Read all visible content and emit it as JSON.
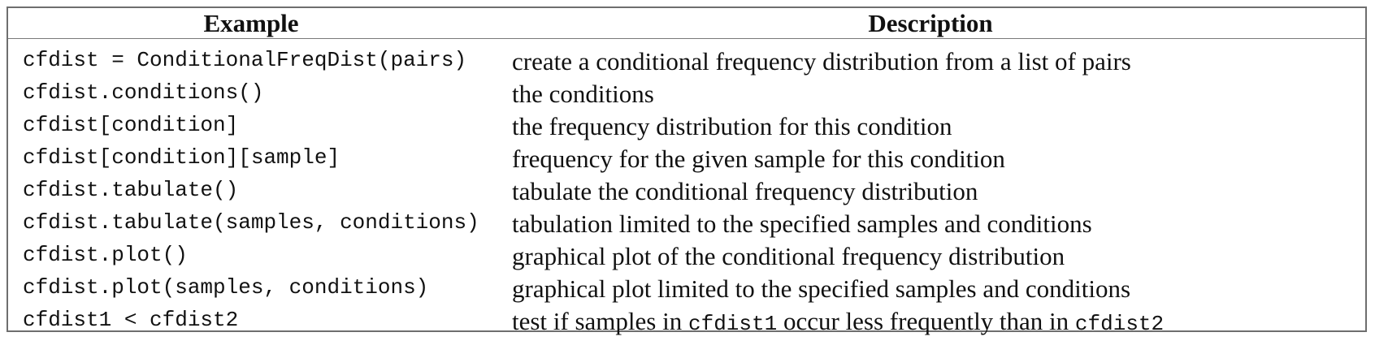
{
  "table": {
    "headers": {
      "example": "Example",
      "description": "Description"
    },
    "rows": [
      {
        "example": "cfdist = ConditionalFreqDist(pairs)",
        "description": "create a conditional frequency distribution from a list of pairs"
      },
      {
        "example": "cfdist.conditions()",
        "description": "the conditions"
      },
      {
        "example": "cfdist[condition]",
        "description": "the frequency distribution for this condition"
      },
      {
        "example": "cfdist[condition][sample]",
        "description": "frequency for the given sample for this condition"
      },
      {
        "example": "cfdist.tabulate()",
        "description": "tabulate the conditional frequency distribution"
      },
      {
        "example": "cfdist.tabulate(samples, conditions)",
        "description": "tabulation limited to the specified samples and conditions"
      },
      {
        "example": "cfdist.plot()",
        "description": "graphical plot of the conditional frequency distribution"
      },
      {
        "example": "cfdist.plot(samples, conditions)",
        "description": "graphical plot limited to the specified samples and conditions"
      },
      {
        "example": "cfdist1 < cfdist2",
        "description_parts": {
          "text1": "test if samples in ",
          "code1": "cfdist1",
          "text2": " occur less frequently than in ",
          "code2": "cfdist2"
        }
      }
    ]
  }
}
